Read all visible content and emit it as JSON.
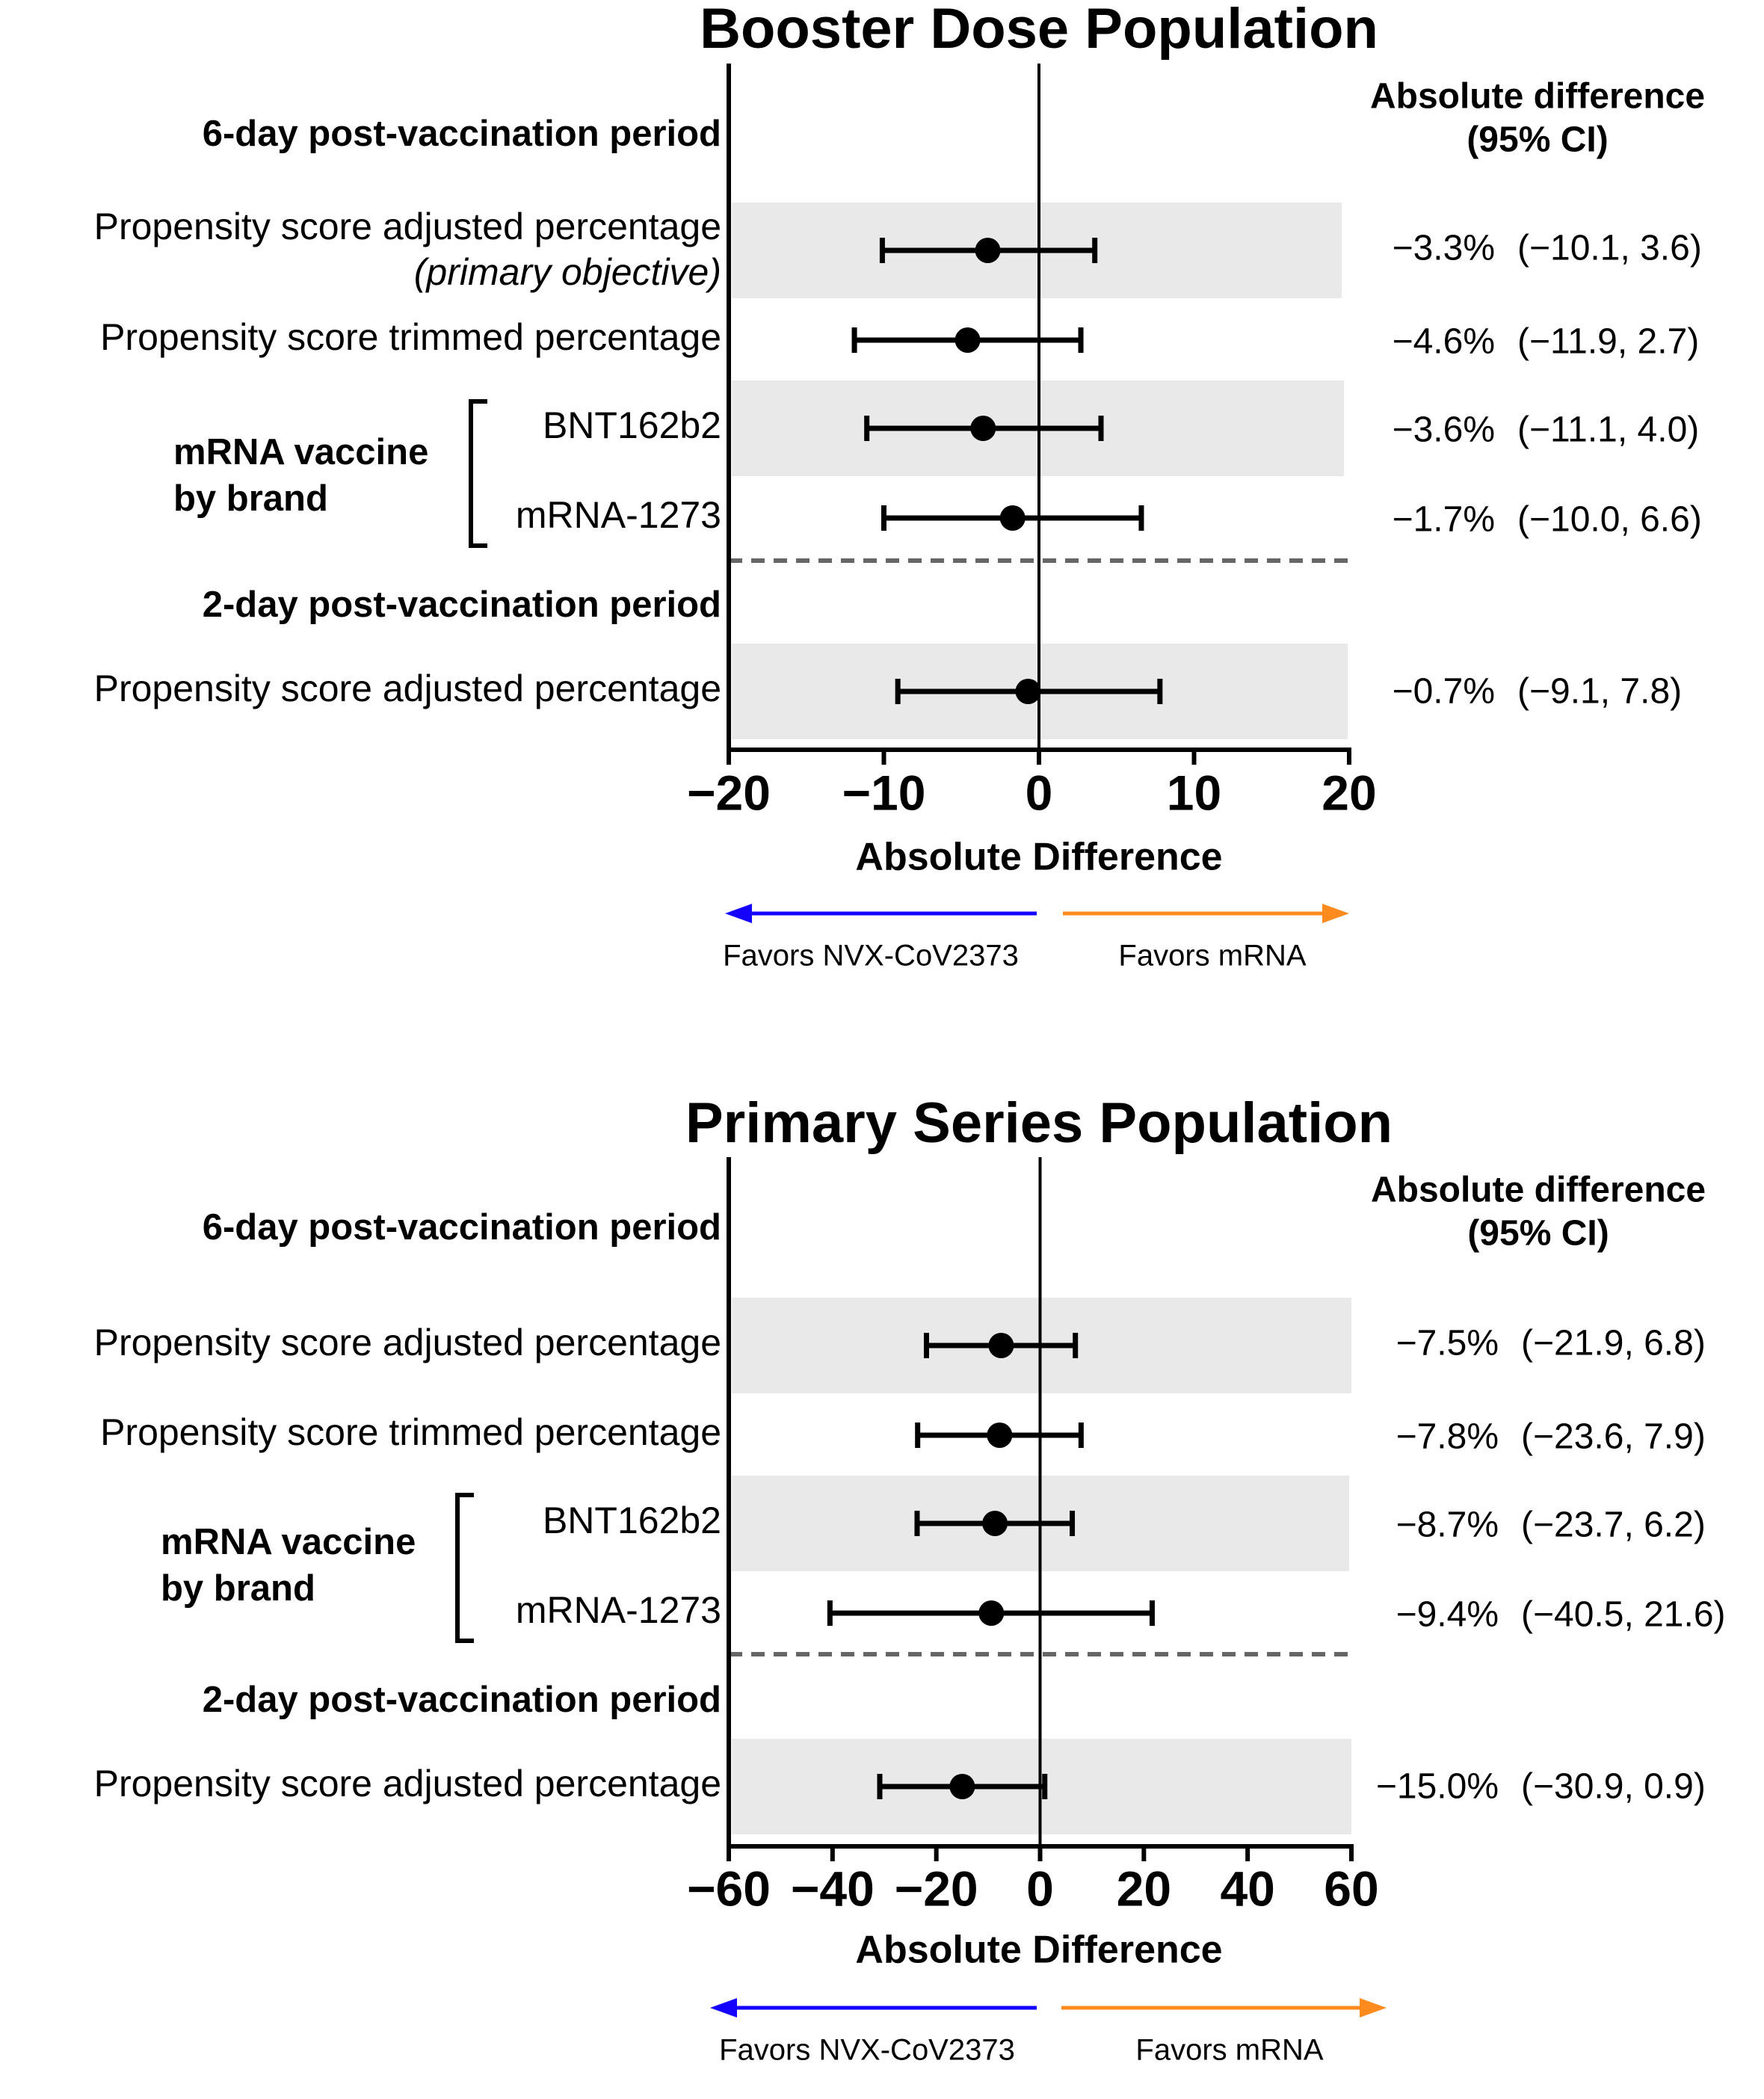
{
  "chart_data": [
    {
      "type": "forest",
      "title": "Booster Dose Population",
      "xlabel": "Absolute Difference",
      "xlim": [
        -20,
        20
      ],
      "xticks": [
        -20,
        -10,
        0,
        10,
        20
      ],
      "xtick_labels": [
        "−20",
        "−10",
        "0",
        "10",
        "20"
      ],
      "ci_header": [
        "Absolute difference",
        "(95% CI)"
      ],
      "sections": [
        {
          "label": "6-day post-vaccination period",
          "kind": "heading"
        },
        {
          "label": "2-day post-vaccination period",
          "kind": "heading"
        }
      ],
      "group_label": [
        "mRNA vaccine",
        "by brand"
      ],
      "rows": [
        {
          "label": "Propensity score adjusted percentage",
          "sublabel": "(primary objective)",
          "estimate": -3.3,
          "lower": -10.1,
          "upper": 3.6,
          "estimate_text": "−3.3%",
          "ci_text": "(−10.1, 3.6)",
          "shaded": true
        },
        {
          "label": "Propensity score trimmed percentage",
          "estimate": -4.6,
          "lower": -11.9,
          "upper": 2.7,
          "estimate_text": "−4.6%",
          "ci_text": "(−11.9, 2.7)",
          "shaded": false
        },
        {
          "label": "BNT162b2",
          "estimate": -3.6,
          "lower": -11.1,
          "upper": 4.0,
          "estimate_text": "−3.6%",
          "ci_text": "(−11.1, 4.0)",
          "shaded": true
        },
        {
          "label": "mRNA-1273",
          "estimate": -1.7,
          "lower": -10.0,
          "upper": 6.6,
          "estimate_text": "−1.7%",
          "ci_text": "(−10.0, 6.6)",
          "shaded": false
        },
        {
          "label": "Propensity score adjusted percentage",
          "estimate": -0.7,
          "lower": -9.1,
          "upper": 7.8,
          "estimate_text": "−0.7%",
          "ci_text": "(−9.1, 7.8)",
          "shaded": true
        }
      ],
      "favors_left": "Favors NVX-CoV2373",
      "favors_right": "Favors mRNA",
      "colors": {
        "left_arrow": "#1400ff",
        "right_arrow": "#ff8a1e",
        "shade": "#e9e9e9",
        "dash": "#666666"
      }
    },
    {
      "type": "forest",
      "title": "Primary Series Population",
      "xlabel": "Absolute Difference",
      "xlim": [
        -60,
        60
      ],
      "xticks": [
        -60,
        -40,
        -20,
        0,
        20,
        40,
        60
      ],
      "xtick_labels": [
        "−60",
        "−40",
        "−20",
        "0",
        "20",
        "40",
        "60"
      ],
      "ci_header": [
        "Absolute difference",
        "(95% CI)"
      ],
      "sections": [
        {
          "label": "6-day post-vaccination period",
          "kind": "heading"
        },
        {
          "label": "2-day post-vaccination period",
          "kind": "heading"
        }
      ],
      "group_label": [
        "mRNA vaccine",
        "by brand"
      ],
      "rows": [
        {
          "label": "Propensity score adjusted percentage",
          "estimate": -7.5,
          "lower": -21.9,
          "upper": 6.8,
          "estimate_text": "−7.5%",
          "ci_text": "(−21.9, 6.8)",
          "shaded": true
        },
        {
          "label": "Propensity score trimmed percentage",
          "estimate": -7.8,
          "lower": -23.6,
          "upper": 7.9,
          "estimate_text": "−7.8%",
          "ci_text": "(−23.6, 7.9)",
          "shaded": false
        },
        {
          "label": "BNT162b2",
          "estimate": -8.7,
          "lower": -23.7,
          "upper": 6.2,
          "estimate_text": "−8.7%",
          "ci_text": "(−23.7, 6.2)",
          "shaded": true
        },
        {
          "label": "mRNA-1273",
          "estimate": -9.4,
          "lower": -40.5,
          "upper": 21.6,
          "estimate_text": "−9.4%",
          "ci_text": "(−40.5, 21.6)",
          "shaded": false
        },
        {
          "label": "Propensity score adjusted percentage",
          "estimate": -15.0,
          "lower": -30.9,
          "upper": 0.9,
          "estimate_text": "−15.0%",
          "ci_text": "(−30.9, 0.9)",
          "shaded": true
        }
      ],
      "favors_left": "Favors NVX-CoV2373",
      "favors_right": "Favors mRNA",
      "colors": {
        "left_arrow": "#1400ff",
        "right_arrow": "#ff8a1e",
        "shade": "#e9e9e9",
        "dash": "#666666"
      }
    }
  ]
}
